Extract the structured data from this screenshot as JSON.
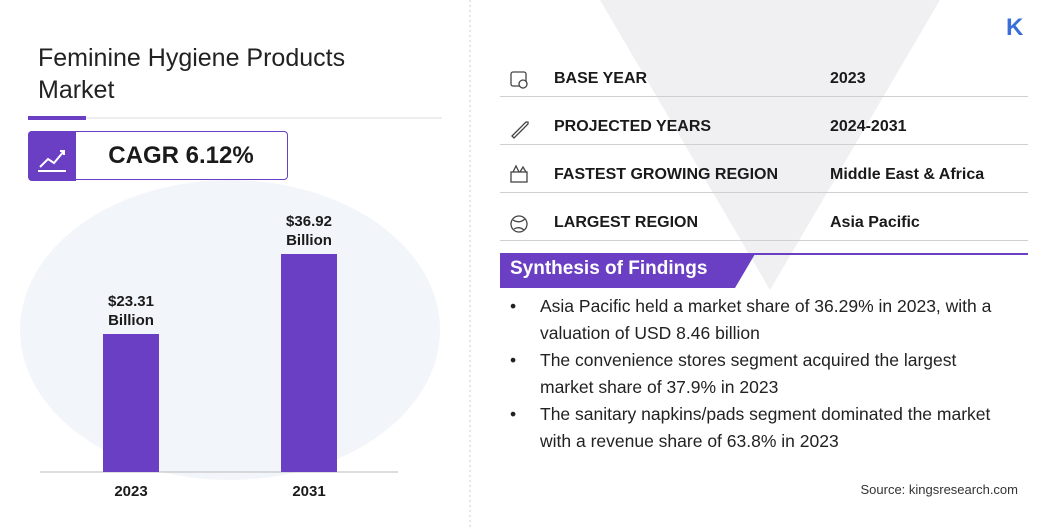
{
  "chart_data": {
    "type": "bar",
    "title": "Feminine Hygiene Products Market",
    "categories": [
      "2023",
      "2031"
    ],
    "values": [
      23.31,
      36.92
    ],
    "value_labels": [
      "$23.31 Billion",
      "$36.92 Billion"
    ],
    "color": "#6a3fc4"
  },
  "cagr": "CAGR 6.12%",
  "info_rows": [
    {
      "label": "BASE YEAR",
      "value": "2023"
    },
    {
      "label": "PROJECTED YEARS",
      "value": "2024-2031"
    },
    {
      "label": "FASTEST GROWING REGION",
      "value": "Middle East & Africa"
    },
    {
      "label": "LARGEST REGION",
      "value": "Asia Pacific"
    }
  ],
  "findings_title": "Synthesis of Findings",
  "findings": [
    "Asia Pacific held a market share of 36.29% in 2023, with a valuation of USD 8.46 billion",
    "The convenience stores segment acquired the largest market share of 37.9% in 2023",
    "The sanitary napkins/pads segment dominated the market with a revenue share of 63.8% in 2023"
  ],
  "source": "Source: kingsresearch.com",
  "logo": "K"
}
